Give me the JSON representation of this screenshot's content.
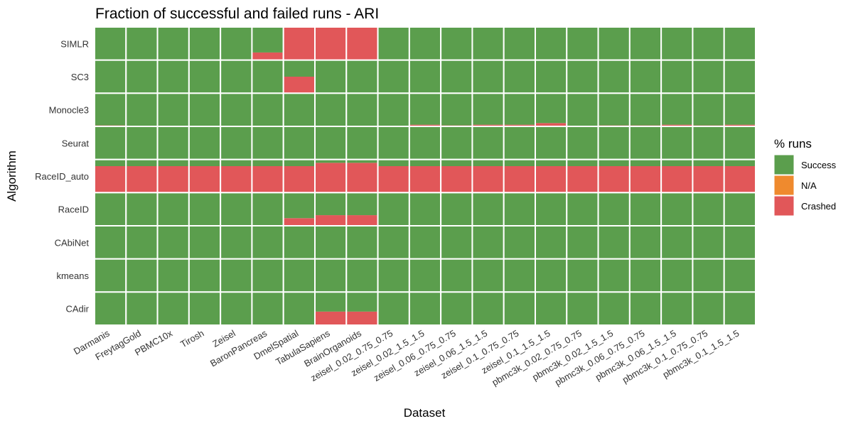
{
  "chart_data": {
    "type": "heatmap",
    "title": "Fraction of successful and failed runs - ARI",
    "xlabel": "Dataset",
    "ylabel": "Algorithm",
    "datasets": [
      "Darmanis",
      "FreytagGold",
      "PBMC10x",
      "Tirosh",
      "Zeisel",
      "BaronPancreas",
      "DmelSpatial",
      "TabulaSapiens",
      "BrainOrganoids",
      "zeisel_0.02_0.75_0.75",
      "zeisel_0.02_1.5_1.5",
      "zeisel_0.06_0.75_0.75",
      "zeisel_0.06_1.5_1.5",
      "zeisel_0.1_0.75_0.75",
      "zeisel_0.1_1.5_1.5",
      "pbmc3k_0.02_0.75_0.75",
      "pbmc3k_0.02_1.5_1.5",
      "pbmc3k_0.06_0.75_0.75",
      "pbmc3k_0.06_1.5_1.5",
      "pbmc3k_0.1_0.75_0.75",
      "pbmc3k_0.1_1.5_1.5"
    ],
    "algorithms": [
      "SIMLR",
      "SC3",
      "Monocle3",
      "Seurat",
      "RaceID_auto",
      "RaceID",
      "CAbiNet",
      "kmeans",
      "CAdir"
    ],
    "legend_title": "% runs",
    "categories": [
      "Success",
      "N/A",
      "Crashed"
    ],
    "colors": {
      "Success": "#5b9e4d",
      "N/A": "#ef8a2e",
      "Crashed": "#e15759"
    },
    "series": [
      {
        "name": "Success",
        "matrix": [
          [
            1,
            1,
            1,
            1,
            1,
            0.77,
            0,
            0,
            0,
            1,
            1,
            1,
            1,
            1,
            1,
            1,
            1,
            1,
            1,
            1,
            1
          ],
          [
            1,
            1,
            1,
            1,
            1,
            1,
            0.5,
            1,
            1,
            1,
            1,
            1,
            1,
            1,
            1,
            1,
            1,
            1,
            1,
            1,
            1
          ],
          [
            0.97,
            1,
            1,
            1,
            1,
            1,
            1,
            1,
            1,
            1,
            0.95,
            0.97,
            0.95,
            0.95,
            0.9,
            1,
            0.97,
            0.97,
            0.95,
            0.97,
            0.95
          ],
          [
            1,
            1,
            1,
            1,
            1,
            1,
            1,
            1,
            1,
            1,
            1,
            1,
            1,
            1,
            1,
            1,
            1,
            1,
            1,
            1,
            1
          ],
          [
            0.2,
            0.2,
            0.2,
            0.2,
            0.2,
            0.2,
            0.2,
            0.1,
            0.1,
            0.2,
            0.2,
            0.2,
            0.2,
            0.2,
            0.2,
            0.2,
            0.2,
            0.2,
            0.2,
            0.2,
            0.2
          ],
          [
            1,
            1,
            1,
            1,
            1,
            1,
            0.77,
            0.68,
            0.68,
            1,
            1,
            1,
            1,
            1,
            1,
            1,
            1,
            1,
            1,
            1,
            1
          ],
          [
            1,
            1,
            1,
            1,
            1,
            1,
            1,
            1,
            1,
            1,
            1,
            1,
            1,
            1,
            1,
            1,
            1,
            1,
            1,
            1,
            1
          ],
          [
            1,
            1,
            1,
            1,
            1,
            1,
            1,
            1,
            1,
            1,
            1,
            1,
            1,
            1,
            1,
            1,
            1,
            1,
            1,
            1,
            1
          ],
          [
            1,
            1,
            1,
            1,
            1,
            1,
            1,
            0.59,
            0.59,
            1,
            1,
            1,
            1,
            1,
            1,
            1,
            1,
            1,
            1,
            1,
            1
          ]
        ]
      },
      {
        "name": "N/A",
        "matrix": [
          [
            0,
            0,
            0,
            0,
            0,
            0,
            0,
            0,
            0,
            0,
            0,
            0,
            0,
            0,
            0,
            0,
            0,
            0,
            0,
            0,
            0
          ],
          [
            0,
            0,
            0,
            0,
            0,
            0,
            0,
            0,
            0,
            0,
            0,
            0,
            0,
            0,
            0,
            0,
            0,
            0,
            0,
            0,
            0
          ],
          [
            0,
            0,
            0,
            0,
            0,
            0,
            0,
            0,
            0,
            0,
            0,
            0,
            0,
            0,
            0,
            0,
            0,
            0,
            0,
            0,
            0
          ],
          [
            0,
            0,
            0,
            0,
            0,
            0,
            0,
            0,
            0,
            0,
            0,
            0,
            0,
            0,
            0,
            0,
            0,
            0,
            0,
            0,
            0
          ],
          [
            0,
            0,
            0,
            0,
            0,
            0,
            0,
            0,
            0,
            0,
            0,
            0,
            0,
            0,
            0,
            0,
            0,
            0,
            0,
            0,
            0
          ],
          [
            0,
            0,
            0,
            0,
            0,
            0,
            0,
            0,
            0,
            0,
            0,
            0,
            0,
            0,
            0,
            0,
            0,
            0,
            0,
            0,
            0
          ],
          [
            0,
            0,
            0,
            0,
            0,
            0,
            0,
            0,
            0,
            0,
            0,
            0,
            0,
            0,
            0,
            0,
            0,
            0,
            0,
            0,
            0
          ],
          [
            0,
            0,
            0,
            0,
            0,
            0,
            0,
            0,
            0,
            0,
            0,
            0,
            0,
            0,
            0,
            0,
            0,
            0,
            0,
            0,
            0
          ],
          [
            0,
            0,
            0,
            0,
            0,
            0,
            0,
            0,
            0,
            0,
            0,
            0,
            0,
            0,
            0,
            0,
            0,
            0,
            0,
            0,
            0
          ]
        ]
      },
      {
        "name": "Crashed",
        "matrix": [
          [
            0,
            0,
            0,
            0,
            0,
            0.23,
            1,
            1,
            1,
            0,
            0,
            0,
            0,
            0,
            0,
            0,
            0,
            0,
            0,
            0,
            0
          ],
          [
            0,
            0,
            0,
            0,
            0,
            0,
            0.5,
            0,
            0,
            0,
            0,
            0,
            0,
            0,
            0,
            0,
            0,
            0,
            0,
            0,
            0
          ],
          [
            0.03,
            0,
            0,
            0,
            0,
            0,
            0,
            0,
            0,
            0,
            0.05,
            0.03,
            0.05,
            0.05,
            0.1,
            0,
            0.03,
            0.03,
            0.05,
            0.03,
            0.05
          ],
          [
            0,
            0,
            0,
            0,
            0,
            0,
            0,
            0,
            0,
            0,
            0,
            0,
            0,
            0,
            0,
            0,
            0,
            0,
            0,
            0,
            0
          ],
          [
            0.8,
            0.8,
            0.8,
            0.8,
            0.8,
            0.8,
            0.8,
            0.9,
            0.9,
            0.8,
            0.8,
            0.8,
            0.8,
            0.8,
            0.8,
            0.8,
            0.8,
            0.8,
            0.8,
            0.8,
            0.8
          ],
          [
            0,
            0,
            0,
            0,
            0,
            0,
            0.23,
            0.32,
            0.32,
            0,
            0,
            0,
            0,
            0,
            0,
            0,
            0,
            0,
            0,
            0,
            0
          ],
          [
            0,
            0,
            0,
            0,
            0,
            0,
            0,
            0,
            0,
            0,
            0,
            0,
            0,
            0,
            0,
            0,
            0,
            0,
            0,
            0,
            0
          ],
          [
            0,
            0,
            0,
            0,
            0,
            0,
            0,
            0,
            0,
            0,
            0,
            0,
            0,
            0,
            0,
            0,
            0,
            0,
            0,
            0,
            0
          ],
          [
            0,
            0,
            0,
            0,
            0,
            0,
            0,
            0.41,
            0.41,
            0,
            0,
            0,
            0,
            0,
            0,
            0,
            0,
            0,
            0,
            0,
            0
          ]
        ]
      }
    ],
    "stack_order_bottom_to_top": [
      "Crashed",
      "N/A",
      "Success"
    ],
    "grid": false,
    "legend_position": "right"
  }
}
